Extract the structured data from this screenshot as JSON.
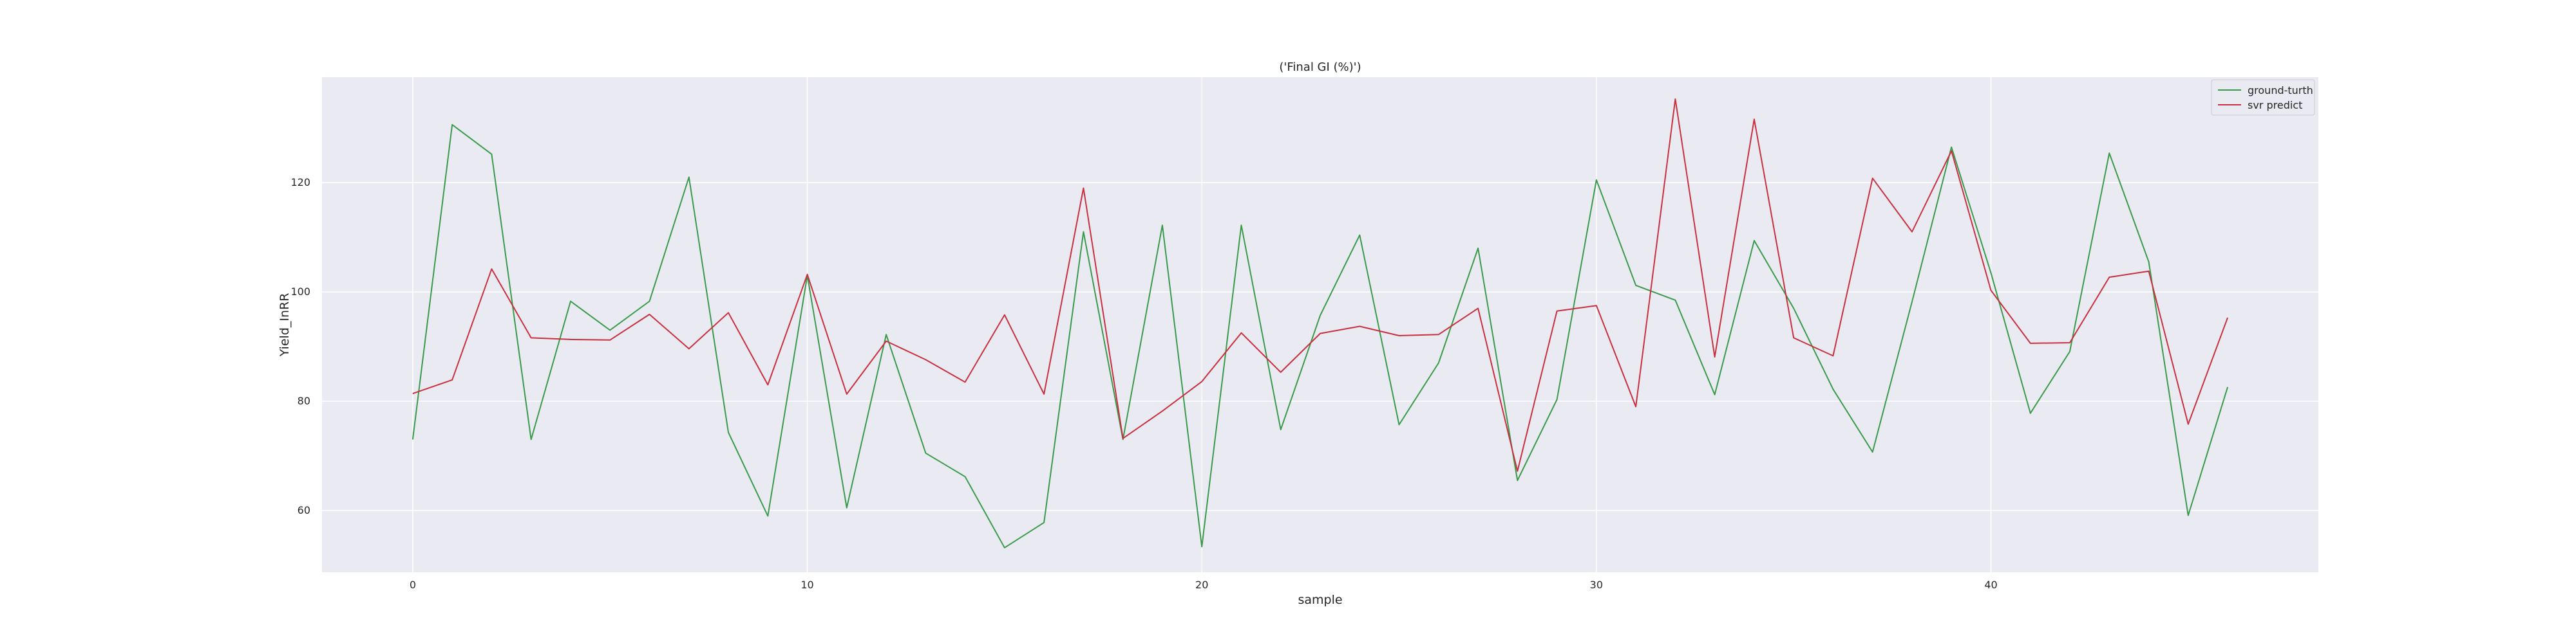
{
  "chart_data": {
    "type": "line",
    "title": "('Final GI (%)')",
    "xlabel": "sample",
    "ylabel": "Yield_InRR",
    "xlim": [
      -2.3,
      48.3
    ],
    "ylim": [
      48.7,
      139.3
    ],
    "xticks": [
      0,
      10,
      20,
      30,
      40
    ],
    "yticks": [
      60,
      80,
      100,
      120
    ],
    "grid": true,
    "legend_position": "top-right",
    "x": [
      0,
      1,
      2,
      3,
      4,
      5,
      6,
      7,
      8,
      9,
      10,
      11,
      12,
      13,
      14,
      15,
      16,
      17,
      18,
      19,
      20,
      21,
      22,
      23,
      24,
      25,
      26,
      27,
      28,
      29,
      30,
      31,
      32,
      33,
      34,
      35,
      36,
      37,
      38,
      39,
      40,
      41,
      42,
      43,
      44,
      45,
      46
    ],
    "series": [
      {
        "name": "ground-turth",
        "color": "#3a9a4b",
        "values": [
          73,
          130.6,
          125.2,
          73,
          98.3,
          93,
          98.3,
          121,
          74.3,
          59,
          103,
          60.5,
          92.2,
          70.5,
          66.2,
          53.2,
          57.8,
          111,
          73,
          112.2,
          53.4,
          112.2,
          74.8,
          95.7,
          110.4,
          75.7,
          87,
          108,
          65.5,
          80.3,
          120.5,
          101.2,
          98.5,
          81.2,
          109.4,
          97,
          82.2,
          70.7,
          98.2,
          126.5,
          103.5,
          77.8,
          89.1,
          125.4,
          105.5,
          59.1,
          82.6
        ]
      },
      {
        "name": "svr predict",
        "color": "#c9303f",
        "values": [
          81.4,
          83.9,
          104.2,
          91.6,
          91.3,
          91.2,
          95.9,
          89.6,
          96.2,
          83,
          103.2,
          81.3,
          91,
          87.6,
          83.5,
          95.8,
          81.3,
          119,
          73.2,
          78.2,
          83.6,
          92.5,
          85.3,
          92.4,
          93.7,
          92,
          92.2,
          97,
          67.2,
          96.5,
          97.5,
          79,
          135.3,
          88.1,
          131.6,
          91.6,
          88.3,
          120.8,
          111,
          125.8,
          100.3,
          90.6,
          90.7,
          102.7,
          103.8,
          75.8,
          95.3
        ]
      }
    ]
  }
}
